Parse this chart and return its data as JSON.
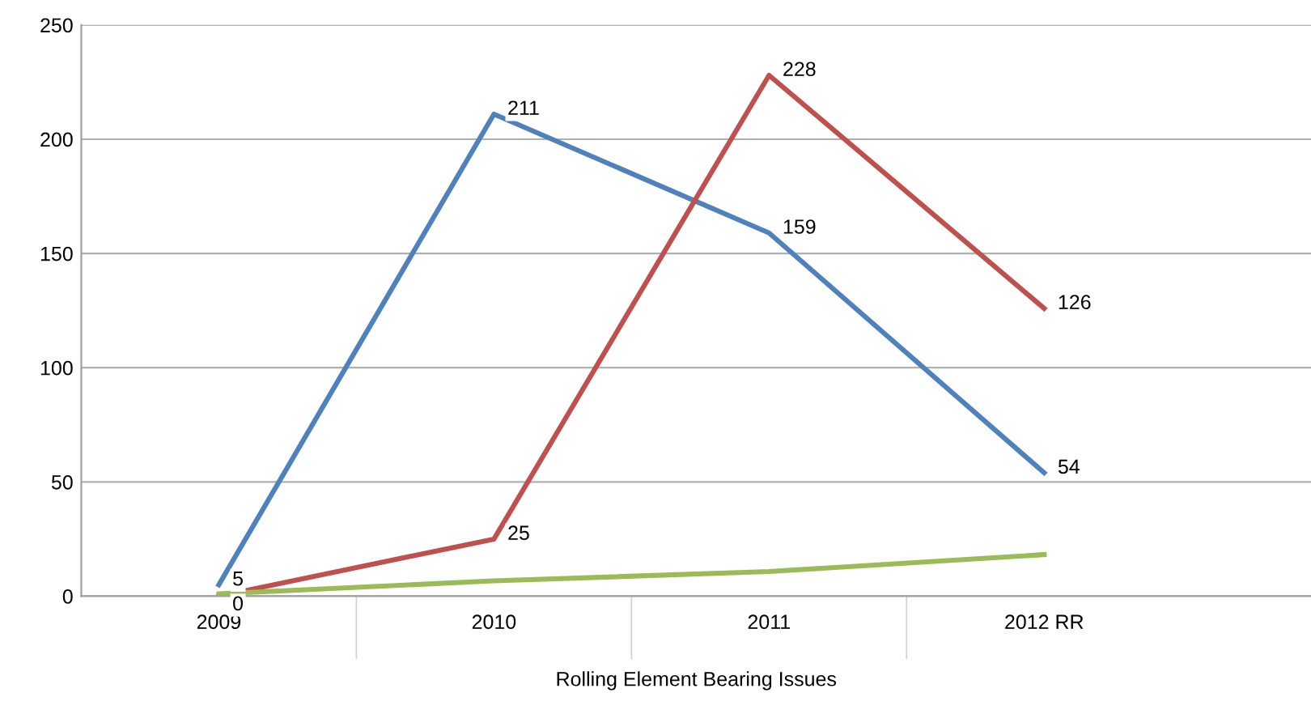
{
  "chart_data": {
    "type": "line",
    "xlabel": "Rolling Element Bearing Issues",
    "categories": [
      "2009",
      "2010",
      "2011",
      "2012 RR"
    ],
    "series": [
      {
        "color": "#4f81bd",
        "values": [
          5,
          211,
          159,
          54
        ],
        "value_labels": [
          "5",
          "211",
          "159",
          "54"
        ]
      },
      {
        "color": "#c0504d",
        "values": [
          0,
          25,
          228,
          126
        ],
        "value_labels": [
          "0",
          "25",
          "228",
          "126"
        ]
      },
      {
        "color": "#9bbb59",
        "values": [
          1,
          6.7,
          10.8,
          18.2
        ]
      }
    ],
    "ylim": [
      0,
      250
    ],
    "yticks": [
      0,
      50,
      100,
      150,
      200,
      250
    ],
    "grid": "y",
    "legend": false,
    "marker": "none",
    "line_style": "solid"
  }
}
